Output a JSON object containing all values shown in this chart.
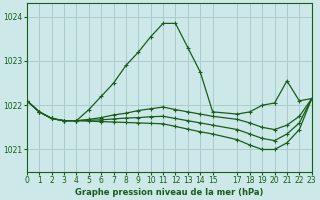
{
  "title": "Graphe pression niveau de la mer (hPa)",
  "bg_color": "#cce8e8",
  "grid_color": "#aacccc",
  "line_color": "#1a5c1a",
  "ylim": [
    1020.5,
    1024.3
  ],
  "yticks": [
    1021,
    1022,
    1023,
    1024
  ],
  "xlim": [
    0,
    23
  ],
  "xticks": [
    0,
    1,
    2,
    3,
    4,
    5,
    6,
    7,
    8,
    9,
    10,
    11,
    12,
    13,
    14,
    15,
    17,
    18,
    19,
    20,
    21,
    22,
    23
  ],
  "curve1_x": [
    0,
    1,
    2,
    3,
    4,
    5,
    6,
    7,
    8,
    9,
    10,
    11,
    12,
    13,
    14,
    15,
    17,
    18,
    19,
    20,
    21,
    22,
    23
  ],
  "curve1_y": [
    1022.1,
    1021.85,
    1021.7,
    1021.65,
    1021.65,
    1021.9,
    1022.2,
    1022.5,
    1022.9,
    1023.2,
    1023.55,
    1023.85,
    1023.85,
    1023.3,
    1022.75,
    1021.85,
    1021.8,
    1021.85,
    1022.0,
    1022.05,
    1022.55,
    1022.1,
    1022.15
  ],
  "curve2_x": [
    0,
    1,
    2,
    3,
    4,
    5,
    6,
    7,
    8,
    9,
    10,
    11,
    12,
    13,
    14,
    15,
    17,
    18,
    19,
    20,
    21,
    22,
    23
  ],
  "curve2_y": [
    1022.1,
    1021.85,
    1021.7,
    1021.65,
    1021.65,
    1021.68,
    1021.72,
    1021.78,
    1021.82,
    1021.88,
    1021.92,
    1021.96,
    1021.9,
    1021.85,
    1021.8,
    1021.75,
    1021.68,
    1021.6,
    1021.5,
    1021.45,
    1021.55,
    1021.75,
    1022.15
  ],
  "curve3_x": [
    0,
    1,
    2,
    3,
    4,
    5,
    6,
    7,
    8,
    9,
    10,
    11,
    12,
    13,
    14,
    15,
    17,
    18,
    19,
    20,
    21,
    22,
    23
  ],
  "curve3_y": [
    1022.1,
    1021.85,
    1021.7,
    1021.65,
    1021.65,
    1021.66,
    1021.67,
    1021.69,
    1021.71,
    1021.72,
    1021.74,
    1021.75,
    1021.7,
    1021.65,
    1021.6,
    1021.55,
    1021.45,
    1021.35,
    1021.25,
    1021.2,
    1021.35,
    1021.6,
    1022.15
  ],
  "curve4_x": [
    0,
    1,
    2,
    3,
    4,
    5,
    6,
    7,
    8,
    9,
    10,
    11,
    12,
    13,
    14,
    15,
    17,
    18,
    19,
    20,
    21,
    22,
    23
  ],
  "curve4_y": [
    1022.1,
    1021.85,
    1021.7,
    1021.65,
    1021.65,
    1021.64,
    1021.63,
    1021.62,
    1021.61,
    1021.6,
    1021.59,
    1021.58,
    1021.52,
    1021.46,
    1021.4,
    1021.35,
    1021.22,
    1021.1,
    1021.0,
    1021.0,
    1021.15,
    1021.45,
    1022.15
  ]
}
